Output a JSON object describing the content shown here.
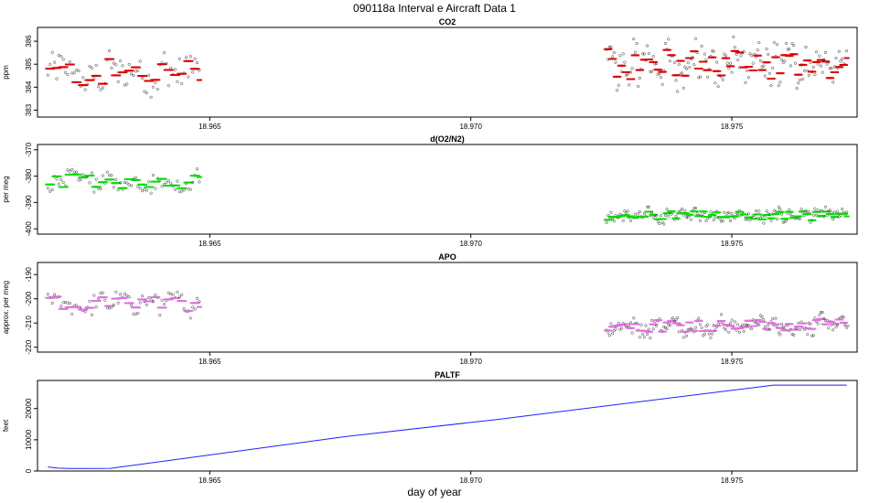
{
  "figure": {
    "title": "090118a   Interval e Aircraft Data 1",
    "xlabel": "day of year"
  },
  "colors": {
    "co2": "#e00000",
    "o2n2": "#00dd00",
    "apo": "#e070e0",
    "paltf": "#2020ff",
    "axis": "#000000"
  },
  "chart_data": [
    {
      "type": "scatter",
      "title": "CO2",
      "ylabel": "ppm",
      "xlabel": "",
      "xlim": [
        18.9617,
        18.9774
      ],
      "ylim": [
        382.7,
        386.6
      ],
      "x_ticks": [
        18.965,
        18.97,
        18.975
      ],
      "x_tick_labels": [
        "18.965",
        "18.970",
        "18.975"
      ],
      "y_ticks": [
        383,
        384,
        385,
        386
      ],
      "y_tick_labels": [
        "383",
        "384",
        "385",
        "386"
      ],
      "series": [
        {
          "name": "CO2",
          "segments": [
            {
              "x_start": 18.9619,
              "x_end": 18.9648,
              "points": 70,
              "mean": 384.6,
              "spread": 1.1
            },
            {
              "x_start": 18.9726,
              "x_end": 18.9772,
              "points": 160,
              "mean": 385.0,
              "spread": 1.1
            }
          ]
        }
      ]
    },
    {
      "type": "scatter",
      "title": "d(O2/N2)",
      "ylabel": "per meg",
      "xlabel": "",
      "xlim": [
        18.9617,
        18.9774
      ],
      "ylim": [
        -402,
        -368
      ],
      "x_ticks": [
        18.965,
        18.97,
        18.975
      ],
      "x_tick_labels": [
        "18.965",
        "18.970",
        "18.975"
      ],
      "y_ticks": [
        -370,
        -380,
        -390,
        -400
      ],
      "y_tick_labels": [
        "-370",
        "-380",
        "-390",
        "-400"
      ],
      "series": [
        {
          "name": "d(O2/N2)",
          "segments": [
            {
              "x_start": 18.9619,
              "x_end": 18.9648,
              "points": 70,
              "mean": -382,
              "spread": 4.5
            },
            {
              "x_start": 18.9726,
              "x_end": 18.9772,
              "points": 160,
              "mean": -395,
              "spread": 3.0
            }
          ]
        }
      ]
    },
    {
      "type": "scatter",
      "title": "APO",
      "ylabel": "approx. per meg",
      "xlabel": "",
      "xlim": [
        18.9617,
        18.9774
      ],
      "ylim": [
        -222,
        -185
      ],
      "x_ticks": [
        18.965,
        18.97,
        18.975
      ],
      "x_tick_labels": [
        "18.965",
        "18.970",
        "18.975"
      ],
      "y_ticks": [
        -190,
        -200,
        -210,
        -220
      ],
      "y_tick_labels": [
        "-190",
        "-200",
        "-210",
        "-220"
      ],
      "series": [
        {
          "name": "APO",
          "segments": [
            {
              "x_start": 18.9619,
              "x_end": 18.9648,
              "points": 70,
              "mean": -202,
              "spread": 5.0
            },
            {
              "x_start": 18.9726,
              "x_end": 18.9772,
              "points": 160,
              "mean": -211,
              "spread": 4.5
            }
          ]
        }
      ]
    },
    {
      "type": "line",
      "title": "PALTF",
      "ylabel": "feet",
      "xlabel": "day of year",
      "xlim": [
        18.9617,
        18.9774
      ],
      "ylim": [
        0,
        29000
      ],
      "x_ticks": [
        18.965,
        18.97,
        18.975
      ],
      "x_tick_labels": [
        "18.965",
        "18.970",
        "18.975"
      ],
      "y_ticks": [
        0,
        10000,
        20000
      ],
      "y_tick_labels": [
        "0",
        "10000",
        "20000"
      ],
      "series": [
        {
          "name": "PALTF",
          "x": [
            18.9619,
            18.9621,
            18.9623,
            18.9627,
            18.9631,
            18.9676,
            18.9705,
            18.9758,
            18.9772
          ],
          "y": [
            1300,
            900,
            800,
            800,
            850,
            11000,
            16500,
            27500,
            27500
          ]
        }
      ]
    }
  ]
}
